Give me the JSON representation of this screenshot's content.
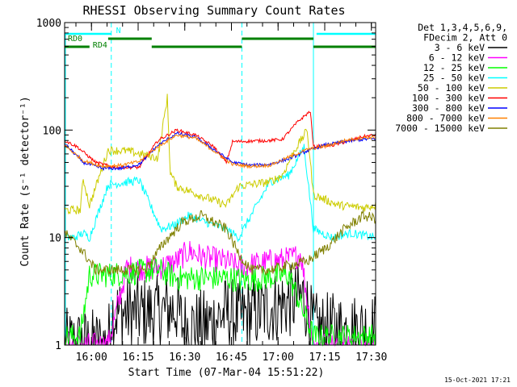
{
  "chart_data": {
    "type": "line",
    "title": "RHESSI Observing Summary Count Rates",
    "xlabel": "Start Time (07-Mar-04 15:51:22)",
    "ylabel": "Count Rate (s⁻¹ detector⁻¹)",
    "y_scale": "log",
    "ylim": [
      1,
      1000
    ],
    "xlim_minutes": [
      0,
      100
    ],
    "x_ticks": [
      "16:00",
      "16:15",
      "16:30",
      "16:45",
      "17:00",
      "17:15",
      "17:30"
    ],
    "y_ticks": [
      "1",
      "10",
      "100",
      "1000"
    ],
    "stamp": "15-Oct-2021 17:21",
    "legend_header": [
      "Det 1,3,4,5,6,9,",
      "FDecim 2, Att 0"
    ],
    "legend_position": "top-right",
    "flags": {
      "night_label": "N",
      "rd0_label": "RD0",
      "rd4_label": "RD4",
      "night_color": "#00ffff",
      "rd_color": "#008000"
    },
    "series": [
      {
        "name": "3 - 6 keV",
        "color": "#000000",
        "x": [
          0,
          14,
          15,
          30,
          36,
          38,
          45,
          52,
          56,
          66,
          72,
          77,
          80,
          100
        ],
        "y": [
          1,
          1,
          2,
          2,
          2.2,
          1.5,
          1.5,
          2,
          1.8,
          2.2,
          2.5,
          2.8,
          1.4,
          1.4
        ]
      },
      {
        "name": "6 - 12 keV",
        "color": "#ff00ff",
        "x": [
          0,
          14,
          20,
          30,
          36,
          40,
          45,
          52,
          56,
          66,
          72,
          76,
          80,
          100
        ],
        "y": [
          1,
          1,
          5.2,
          5.2,
          6,
          7.5,
          6.5,
          6,
          5.3,
          6,
          6.3,
          7,
          1,
          1
        ]
      },
      {
        "name": "12 - 25 keV",
        "color": "#00ff00",
        "x": [
          0,
          5,
          8,
          14,
          30,
          36,
          52,
          58,
          72,
          80,
          100
        ],
        "y": [
          1.2,
          1.2,
          4.5,
          4.5,
          5,
          4.2,
          4.2,
          4,
          4.5,
          1.2,
          1.2
        ]
      },
      {
        "name": "25 - 50 keV",
        "color": "#00ffff",
        "x": [
          0,
          3,
          6,
          8,
          14,
          24,
          31,
          35,
          40,
          45,
          52,
          56,
          66,
          72,
          77,
          80,
          86,
          92,
          96,
          100
        ],
        "y": [
          10,
          10,
          11,
          10,
          31,
          34,
          12,
          13,
          16,
          14,
          12,
          10,
          33,
          38,
          70,
          12,
          10,
          11,
          10.5,
          10
        ]
      },
      {
        "name": "50 - 100 keV",
        "color": "#cccc00",
        "x": [
          0,
          5,
          6,
          8,
          14,
          20,
          30,
          33,
          34,
          36,
          52,
          56,
          66,
          70,
          74,
          78,
          80,
          88,
          96,
          100
        ],
        "y": [
          18,
          18,
          35,
          20,
          65,
          64,
          55,
          200,
          40,
          30,
          20,
          30,
          33,
          38,
          65,
          100,
          25,
          20,
          19,
          20
        ]
      },
      {
        "name": "100 - 300 keV",
        "color": "#ff0000",
        "x": [
          0,
          4,
          10,
          16,
          24,
          30,
          36,
          42,
          48,
          52,
          54,
          66,
          70,
          75,
          79,
          80,
          86,
          92,
          96,
          100
        ],
        "y": [
          80,
          70,
          50,
          45,
          45,
          80,
          100,
          90,
          70,
          50,
          78,
          80,
          82,
          120,
          150,
          70,
          72,
          80,
          87,
          90
        ]
      },
      {
        "name": "300 - 800 keV",
        "color": "#0000ff",
        "x": [
          0,
          6,
          12,
          18,
          24,
          30,
          36,
          42,
          48,
          54,
          60,
          66,
          72,
          78,
          84,
          90,
          96,
          100
        ],
        "y": [
          75,
          50,
          44,
          44,
          48,
          72,
          93,
          86,
          66,
          50,
          47,
          48,
          54,
          64,
          73,
          78,
          82,
          83
        ]
      },
      {
        "name": "800 - 7000 keV",
        "color": "#ff8000",
        "x": [
          0,
          6,
          12,
          18,
          24,
          30,
          36,
          42,
          48,
          54,
          60,
          66,
          72,
          78,
          84,
          90,
          96,
          100
        ],
        "y": [
          72,
          52,
          46,
          47,
          51,
          70,
          90,
          84,
          64,
          48,
          46,
          47,
          56,
          66,
          71,
          80,
          85,
          86
        ]
      },
      {
        "name": "7000 - 15000 keV",
        "color": "#808000",
        "x": [
          0,
          5,
          10,
          14,
          20,
          26,
          32,
          38,
          44,
          52,
          56,
          60,
          66,
          72,
          78,
          84,
          90,
          96,
          100
        ],
        "y": [
          11,
          8,
          5,
          5,
          5,
          5,
          9,
          14,
          16,
          12,
          7,
          5,
          5,
          5.5,
          6,
          8,
          12,
          16,
          15
        ]
      }
    ],
    "annotations": [
      {
        "text": "N",
        "x": 16
      },
      {
        "text": "RD0",
        "x": 0
      },
      {
        "text": "RD4",
        "x": 8
      }
    ],
    "vertical_dashed_lines_minutes": [
      15,
      57,
      80,
      100
    ]
  }
}
